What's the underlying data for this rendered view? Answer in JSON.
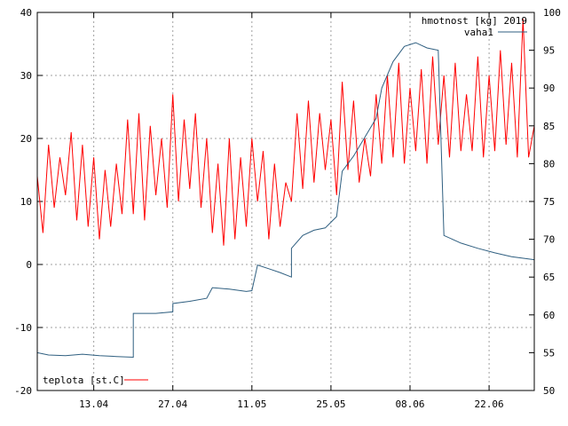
{
  "chart_data": {
    "type": "line",
    "title": "",
    "xlabel": "",
    "ylabel": "",
    "x_ticks": [
      {
        "date": "2019-04-13",
        "label": "13.04"
      },
      {
        "date": "2019-04-27",
        "label": "27.04"
      },
      {
        "date": "2019-05-11",
        "label": "11.05"
      },
      {
        "date": "2019-05-25",
        "label": "25.05"
      },
      {
        "date": "2019-06-08",
        "label": "08.06"
      },
      {
        "date": "2019-06-22",
        "label": "22.06"
      }
    ],
    "xlim": [
      "2019-04-03",
      "2019-06-30"
    ],
    "y_left": {
      "lim": [
        -20,
        40
      ],
      "ticks": [
        -20,
        -10,
        0,
        10,
        20,
        30,
        40
      ]
    },
    "y_right": {
      "lim": [
        50,
        100
      ],
      "ticks": [
        50,
        55,
        60,
        65,
        70,
        75,
        80,
        85,
        90,
        95,
        100
      ]
    },
    "grid": true,
    "series": [
      {
        "name": "teplota [st.C]",
        "axis": "left",
        "color": "#ff0000",
        "legend_position": "bottom-left",
        "points": [
          [
            "2019-04-03",
            14
          ],
          [
            "2019-04-04",
            5
          ],
          [
            "2019-04-05",
            19
          ],
          [
            "2019-04-06",
            9
          ],
          [
            "2019-04-07",
            17
          ],
          [
            "2019-04-08",
            11
          ],
          [
            "2019-04-09",
            21
          ],
          [
            "2019-04-10",
            7
          ],
          [
            "2019-04-11",
            19
          ],
          [
            "2019-04-12",
            6
          ],
          [
            "2019-04-13",
            17
          ],
          [
            "2019-04-14",
            4
          ],
          [
            "2019-04-15",
            15
          ],
          [
            "2019-04-16",
            6
          ],
          [
            "2019-04-17",
            16
          ],
          [
            "2019-04-18",
            8
          ],
          [
            "2019-04-19",
            23
          ],
          [
            "2019-04-20",
            8
          ],
          [
            "2019-04-21",
            24
          ],
          [
            "2019-04-22",
            7
          ],
          [
            "2019-04-23",
            22
          ],
          [
            "2019-04-24",
            11
          ],
          [
            "2019-04-25",
            20
          ],
          [
            "2019-04-26",
            9
          ],
          [
            "2019-04-27",
            27
          ],
          [
            "2019-04-28",
            10
          ],
          [
            "2019-04-29",
            23
          ],
          [
            "2019-04-30",
            12
          ],
          [
            "2019-05-01",
            24
          ],
          [
            "2019-05-02",
            9
          ],
          [
            "2019-05-03",
            20
          ],
          [
            "2019-05-04",
            5
          ],
          [
            "2019-05-05",
            16
          ],
          [
            "2019-05-06",
            3
          ],
          [
            "2019-05-07",
            20
          ],
          [
            "2019-05-08",
            4
          ],
          [
            "2019-05-09",
            17
          ],
          [
            "2019-05-10",
            6
          ],
          [
            "2019-05-11",
            20
          ],
          [
            "2019-05-12",
            10
          ],
          [
            "2019-05-13",
            18
          ],
          [
            "2019-05-14",
            4
          ],
          [
            "2019-05-15",
            16
          ],
          [
            "2019-05-16",
            6
          ],
          [
            "2019-05-17",
            13
          ],
          [
            "2019-05-18",
            10
          ],
          [
            "2019-05-19",
            24
          ],
          [
            "2019-05-20",
            12
          ],
          [
            "2019-05-21",
            26
          ],
          [
            "2019-05-22",
            13
          ],
          [
            "2019-05-23",
            24
          ],
          [
            "2019-05-24",
            15
          ],
          [
            "2019-05-25",
            23
          ],
          [
            "2019-05-26",
            11
          ],
          [
            "2019-05-27",
            29
          ],
          [
            "2019-05-28",
            15
          ],
          [
            "2019-05-29",
            26
          ],
          [
            "2019-05-30",
            13
          ],
          [
            "2019-05-31",
            20
          ],
          [
            "2019-06-01",
            14
          ],
          [
            "2019-06-02",
            27
          ],
          [
            "2019-06-03",
            16
          ],
          [
            "2019-06-04",
            30
          ],
          [
            "2019-06-05",
            17
          ],
          [
            "2019-06-06",
            32
          ],
          [
            "2019-06-07",
            16
          ],
          [
            "2019-06-08",
            28
          ],
          [
            "2019-06-09",
            18
          ],
          [
            "2019-06-10",
            31
          ],
          [
            "2019-06-11",
            16
          ],
          [
            "2019-06-12",
            33
          ],
          [
            "2019-06-13",
            19
          ],
          [
            "2019-06-14",
            30
          ],
          [
            "2019-06-15",
            17
          ],
          [
            "2019-06-16",
            32
          ],
          [
            "2019-06-17",
            18
          ],
          [
            "2019-06-18",
            27
          ],
          [
            "2019-06-19",
            18
          ],
          [
            "2019-06-20",
            33
          ],
          [
            "2019-06-21",
            17
          ],
          [
            "2019-06-22",
            30
          ],
          [
            "2019-06-23",
            18
          ],
          [
            "2019-06-24",
            34
          ],
          [
            "2019-06-25",
            19
          ],
          [
            "2019-06-26",
            32
          ],
          [
            "2019-06-27",
            17
          ],
          [
            "2019-06-28",
            39
          ],
          [
            "2019-06-29",
            17
          ],
          [
            "2019-06-30",
            22
          ]
        ]
      },
      {
        "name": "hmotnost [kg] 2019",
        "axis": "right",
        "color": "#2f5f80",
        "legend_position": "top-right",
        "points": [
          [
            "2019-04-03",
            55
          ],
          [
            "2019-04-05",
            54.7
          ],
          [
            "2019-04-08",
            54.6
          ],
          [
            "2019-04-11",
            54.8
          ],
          [
            "2019-04-14",
            54.6
          ],
          [
            "2019-04-17",
            54.5
          ],
          [
            "2019-04-20",
            54.4
          ],
          [
            "2019-04-20.01",
            60.2
          ],
          [
            "2019-04-24",
            60.2
          ],
          [
            "2019-04-27",
            60.4
          ],
          [
            "2019-04-27.01",
            61.5
          ],
          [
            "2019-04-30",
            61.8
          ],
          [
            "2019-05-03",
            62.2
          ],
          [
            "2019-05-04",
            63.6
          ],
          [
            "2019-05-07",
            63.4
          ],
          [
            "2019-05-10",
            63.1
          ],
          [
            "2019-05-11",
            63.2
          ],
          [
            "2019-05-12",
            66.6
          ],
          [
            "2019-05-14",
            66.1
          ],
          [
            "2019-05-16",
            65.6
          ],
          [
            "2019-05-18",
            65.0
          ],
          [
            "2019-05-18.01",
            68.8
          ],
          [
            "2019-05-20",
            70.5
          ],
          [
            "2019-05-22",
            71.2
          ],
          [
            "2019-05-24",
            71.5
          ],
          [
            "2019-05-26",
            73.0
          ],
          [
            "2019-05-27",
            79.0
          ],
          [
            "2019-05-29",
            81.0
          ],
          [
            "2019-05-31",
            83.5
          ],
          [
            "2019-06-02",
            86.0
          ],
          [
            "2019-06-03",
            90.0
          ],
          [
            "2019-06-05",
            93.5
          ],
          [
            "2019-06-07",
            95.5
          ],
          [
            "2019-06-09",
            96.0
          ],
          [
            "2019-06-11",
            95.3
          ],
          [
            "2019-06-13",
            95.0
          ],
          [
            "2019-06-14",
            70.5
          ],
          [
            "2019-06-17",
            69.5
          ],
          [
            "2019-06-20",
            68.8
          ],
          [
            "2019-06-23",
            68.2
          ],
          [
            "2019-06-26",
            67.7
          ],
          [
            "2019-06-30",
            67.3
          ]
        ]
      }
    ],
    "legend": [
      {
        "label": "hmotnost [kg] 2019",
        "position": "top-right",
        "swatch": false
      },
      {
        "label": "vaha1",
        "position": "top-right",
        "swatch": true,
        "color": "#2f5f80"
      },
      {
        "label": "teplota [st.C]",
        "position": "bottom-left",
        "swatch": true,
        "color": "#ff0000"
      }
    ]
  }
}
